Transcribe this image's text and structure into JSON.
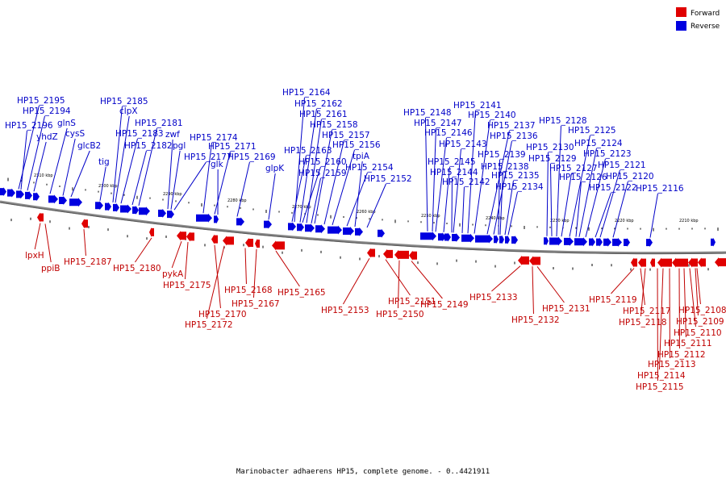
{
  "caption": "Marinobacter adhaerens HP15, complete genome. - 0..4421911",
  "legend": [
    {
      "label": "Forward",
      "color": "#e00000"
    },
    {
      "label": "Reverse",
      "color": "#0000e0"
    }
  ],
  "colors": {
    "forward": "#e00000",
    "reverse": "#0000e0",
    "backbone": "#888888",
    "forward_label": "#c00000",
    "reverse_label": "#0000c8"
  },
  "scale_labels": [
    "2310 kbp",
    "2300 kbp",
    "2290 kbp",
    "2280 kbp",
    "2270 kbp",
    "2260 kbp",
    "2250 kbp",
    "2240 kbp",
    "2230 kbp",
    "2220 kbp",
    "2210 kbp"
  ],
  "reverse_genes": [
    "HP15_2195",
    "HP15_2194",
    "HP15_2196",
    "yhdZ",
    "glnS",
    "cysS",
    "glcB2",
    "HP15_2185",
    "clpX",
    "HP15_2181",
    "HP15_2183",
    "zwf",
    "HP15_2182",
    "pgl",
    "tig",
    "HP15_2177",
    "HP15_2174",
    "HP15_2171",
    "glk",
    "HP15_2169",
    "glpK",
    "HP15_2164",
    "HP15_2162",
    "HP15_2161",
    "HP15_2158",
    "HP15_2157",
    "HP15_2163",
    "HP15_2156",
    "HP15_2160",
    "tpiA",
    "HP15_2159",
    "HP15_2154",
    "HP15_2152",
    "HP15_2141",
    "HP15_2148",
    "HP15_2140",
    "HP15_2147",
    "HP15_2137",
    "HP15_2146",
    "HP15_2136",
    "HP15_2143",
    "HP15_2139",
    "HP15_2145",
    "HP15_2138",
    "HP15_2144",
    "HP15_2135",
    "HP15_2142",
    "HP15_2134",
    "HP15_2128",
    "HP15_2125",
    "HP15_2124",
    "HP15_2130",
    "HP15_2123",
    "HP15_2129",
    "HP15_2121",
    "HP15_2127",
    "HP15_2126",
    "HP15_2120",
    "HP15_2122",
    "HP15_2116"
  ],
  "forward_genes": [
    "lpxH",
    "ppiB",
    "HP15_2187",
    "HP15_2180",
    "pykA",
    "HP15_2175",
    "HP15_2170",
    "HP15_2172",
    "HP15_2168",
    "HP15_2167",
    "HP15_2165",
    "HP15_2153",
    "HP15_2151",
    "HP15_2150",
    "HP15_2149",
    "HP15_2133",
    "HP15_2132",
    "HP15_2131",
    "HP15_2119",
    "HP15_2117",
    "HP15_2118",
    "HP15_2108",
    "HP15_2109",
    "HP15_2110",
    "HP15_2111",
    "HP15_2112",
    "HP15_2113",
    "HP15_2114",
    "HP15_2115"
  ]
}
